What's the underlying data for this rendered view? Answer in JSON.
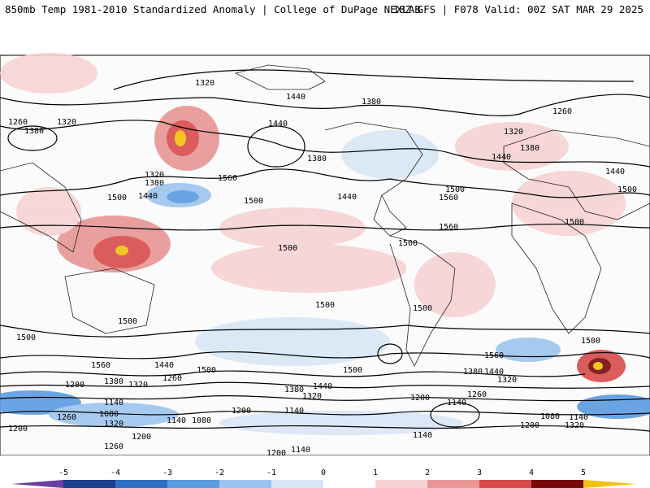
{
  "header": {
    "title": "850mb Temp 1981-2010 Standardized Anomaly | College of DuPage NEXLAB",
    "run_info": "18Z GFS | F078 Valid: 00Z SAT MAR 29 2025"
  },
  "colorbar": {
    "ticks": [
      "-5",
      "-4",
      "-3",
      "-2",
      "-1",
      "0",
      "1",
      "2",
      "3",
      "4",
      "5"
    ],
    "colors": [
      "#6b3fa0",
      "#1f3f8f",
      "#2f6fc4",
      "#5b9be0",
      "#9cc4ee",
      "#d8e6f6",
      "#ffffff",
      "#f6d3d3",
      "#e99696",
      "#d84b4b",
      "#b01818",
      "#7a0a0a",
      "#f2c20c"
    ]
  },
  "contour_labels": [
    "1320",
    "1440",
    "1380",
    "1260",
    "1500",
    "1560",
    "1200",
    "1140",
    "1080"
  ],
  "icons": {
    "map": "world-map-icon"
  }
}
